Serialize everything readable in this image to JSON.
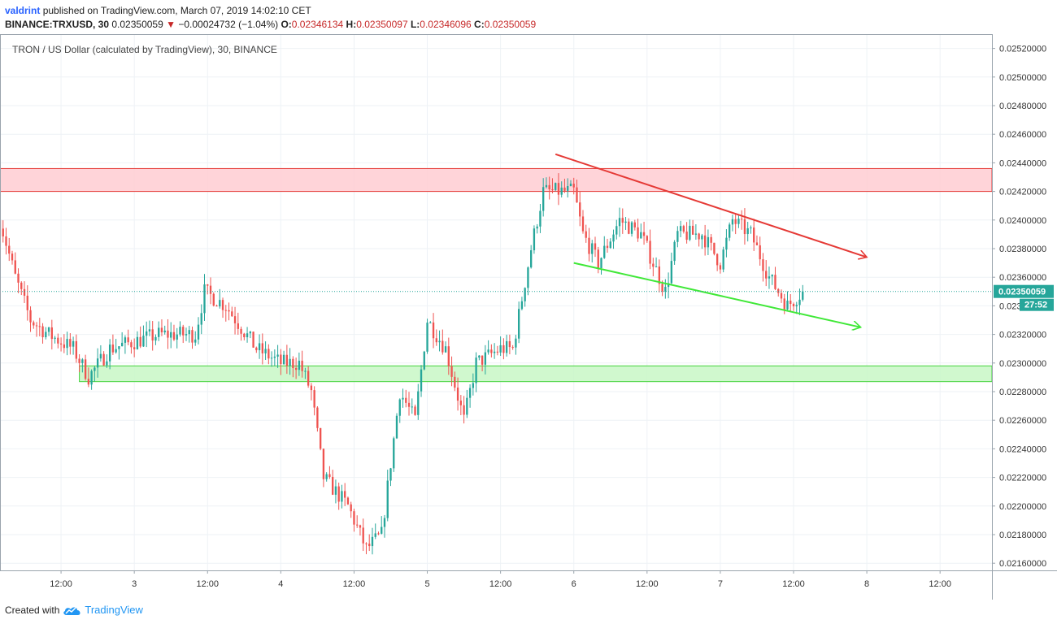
{
  "header": {
    "author": "valdrint",
    "published_text": "published on TradingView.com, March 07, 2019 14:02:10 CET",
    "symbol": "BINANCE:TRXUSD, 30",
    "last_price": "0.02350059",
    "change_arrow": "▼",
    "change": "−0.00024732 (−1.04%)",
    "o_label": "O:",
    "o_value": "0.02346134",
    "h_label": "H:",
    "h_value": "0.02350097",
    "l_label": "L:",
    "l_value": "0.02346096",
    "c_label": "C:",
    "c_value": "0.02350059"
  },
  "footer": {
    "created_with": "Created with",
    "brand": "TradingView",
    "logo_icon": "tradingview-cloud-icon"
  },
  "colors": {
    "up": "#26a69a",
    "down": "#ef5350",
    "grid": "#eef2f6",
    "resistance_fill": "#ffcdd2",
    "resistance_border": "#e53935",
    "support_fill": "#c8f7c5",
    "support_border": "#43d23b",
    "trend_red": "#e53935",
    "trend_green": "#40e838",
    "price_badge": "#26a69a"
  },
  "chart_data": {
    "type": "candlestick",
    "title": "TRON / US Dollar (calculated by TradingView), 30, BINANCE",
    "interval_minutes": 30,
    "ylim": [
      0.02155,
      0.0253
    ],
    "y_ticks": [
      "0.02160000",
      "0.02180000",
      "0.02200000",
      "0.02220000",
      "0.02240000",
      "0.02260000",
      "0.02280000",
      "0.02300000",
      "0.02320000",
      "0.02340000",
      "0.02360000",
      "0.02380000",
      "0.02400000",
      "0.02420000",
      "0.02440000",
      "0.02460000",
      "0.02480000",
      "0.02500000",
      "0.02520000"
    ],
    "x_ticks": [
      {
        "label": "12:00",
        "t": "2019-03-02 12:00"
      },
      {
        "label": "3",
        "t": "2019-03-03 00:00"
      },
      {
        "label": "12:00",
        "t": "2019-03-03 12:00"
      },
      {
        "label": "4",
        "t": "2019-03-04 00:00"
      },
      {
        "label": "12:00",
        "t": "2019-03-04 12:00"
      },
      {
        "label": "5",
        "t": "2019-03-05 00:00"
      },
      {
        "label": "12:00",
        "t": "2019-03-05 12:00"
      },
      {
        "label": "6",
        "t": "2019-03-06 00:00"
      },
      {
        "label": "12:00",
        "t": "2019-03-06 12:00"
      },
      {
        "label": "7",
        "t": "2019-03-07 00:00"
      },
      {
        "label": "12:00",
        "t": "2019-03-07 12:00"
      },
      {
        "label": "8",
        "t": "2019-03-08 00:00"
      },
      {
        "label": "12:00",
        "t": "2019-03-08 12:00"
      }
    ],
    "x_range": [
      "2019-03-02 02:00",
      "2019-03-08 20:30"
    ],
    "anchors": [
      {
        "t": "2019-03-02 02:00",
        "close": 0.024
      },
      {
        "t": "2019-03-02 04:30",
        "close": 0.0236
      },
      {
        "t": "2019-03-02 07:00",
        "close": 0.0233
      },
      {
        "t": "2019-03-02 10:00",
        "close": 0.0232
      },
      {
        "t": "2019-03-02 14:00",
        "close": 0.0231
      },
      {
        "t": "2019-03-02 16:30",
        "close": 0.0229
      },
      {
        "t": "2019-03-02 20:00",
        "close": 0.0231
      },
      {
        "t": "2019-03-03 04:00",
        "close": 0.0232
      },
      {
        "t": "2019-03-03 10:00",
        "close": 0.0232
      },
      {
        "t": "2019-03-03 11:30",
        "close": 0.0235
      },
      {
        "t": "2019-03-03 15:00",
        "close": 0.0234
      },
      {
        "t": "2019-03-03 20:00",
        "close": 0.0231
      },
      {
        "t": "2019-03-04 00:00",
        "close": 0.023
      },
      {
        "t": "2019-03-04 03:00",
        "close": 0.023
      },
      {
        "t": "2019-03-04 05:00",
        "close": 0.0228
      },
      {
        "t": "2019-03-04 07:00",
        "close": 0.0222
      },
      {
        "t": "2019-03-04 11:00",
        "close": 0.022
      },
      {
        "t": "2019-03-04 14:00",
        "close": 0.0217
      },
      {
        "t": "2019-03-04 16:30",
        "close": 0.0218
      },
      {
        "t": "2019-03-04 19:30",
        "close": 0.0228
      },
      {
        "t": "2019-03-04 22:00",
        "close": 0.0226
      },
      {
        "t": "2019-03-05 00:00",
        "close": 0.0233
      },
      {
        "t": "2019-03-05 03:00",
        "close": 0.0231
      },
      {
        "t": "2019-03-05 06:00",
        "close": 0.0226
      },
      {
        "t": "2019-03-05 08:00",
        "close": 0.023
      },
      {
        "t": "2019-03-05 12:00",
        "close": 0.0231
      },
      {
        "t": "2019-03-05 14:00",
        "close": 0.0231
      },
      {
        "t": "2019-03-05 17:00",
        "close": 0.0238
      },
      {
        "t": "2019-03-05 19:00",
        "close": 0.0242
      },
      {
        "t": "2019-03-06 00:00",
        "close": 0.0242
      },
      {
        "t": "2019-03-06 01:30",
        "close": 0.0239
      },
      {
        "t": "2019-03-06 04:00",
        "close": 0.0237
      },
      {
        "t": "2019-03-06 07:30",
        "close": 0.024
      },
      {
        "t": "2019-03-06 11:00",
        "close": 0.0239
      },
      {
        "t": "2019-03-06 15:00",
        "close": 0.0235
      },
      {
        "t": "2019-03-06 17:00",
        "close": 0.0239
      },
      {
        "t": "2019-03-06 21:00",
        "close": 0.0239
      },
      {
        "t": "2019-03-07 00:00",
        "close": 0.0237
      },
      {
        "t": "2019-03-07 02:00",
        "close": 0.024
      },
      {
        "t": "2019-03-07 05:00",
        "close": 0.0239
      },
      {
        "t": "2019-03-07 08:00",
        "close": 0.0236
      },
      {
        "t": "2019-03-07 11:00",
        "close": 0.0234
      },
      {
        "t": "2019-03-07 13:30",
        "close": 0.02350059
      }
    ],
    "last_price_label": "0.02350059",
    "countdown_label": "27:52",
    "zones": [
      {
        "name": "resistance-zone",
        "from_t": "2019-03-02 02:00",
        "y_low": 0.0242,
        "y_high": 0.02436
      },
      {
        "name": "support-zone",
        "from_t": "2019-03-02 15:00",
        "y_low": 0.02287,
        "y_high": 0.02298
      }
    ],
    "trendlines": [
      {
        "name": "resistance-trendline",
        "from": {
          "t": "2019-03-05 21:00",
          "y": 0.02446
        },
        "to": {
          "t": "2019-03-08 00:00",
          "y": 0.02374
        },
        "arrow": true
      },
      {
        "name": "support-trendline",
        "from": {
          "t": "2019-03-06 00:00",
          "y": 0.0237
        },
        "to": {
          "t": "2019-03-07 23:00",
          "y": 0.02325
        },
        "arrow": true
      }
    ]
  }
}
